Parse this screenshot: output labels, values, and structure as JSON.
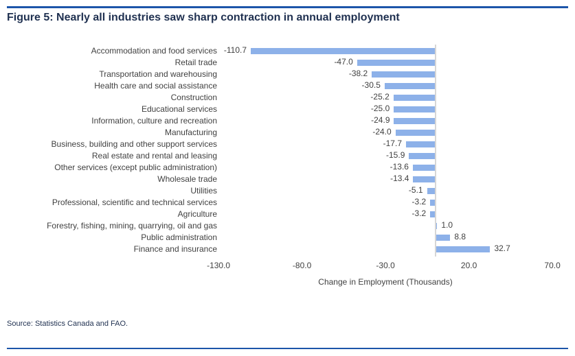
{
  "figure": {
    "title": "Figure 5: Nearly all industries saw sharp contraction in annual employment",
    "source": "Source: Statistics Canada and FAO."
  },
  "chart_data": {
    "type": "bar",
    "orientation": "horizontal",
    "title": "Figure 5: Nearly all industries saw sharp contraction in annual employment",
    "categories": [
      "Accommodation and food services",
      "Retail trade",
      "Transportation and warehousing",
      "Health care and social assistance",
      "Construction",
      "Educational services",
      "Information, culture and recreation",
      "Manufacturing",
      "Business, building and other support services",
      "Real estate and rental and leasing",
      "Other services (except public administration)",
      "Wholesale trade",
      "Utilities",
      "Professional, scientific and technical services",
      "Agriculture",
      "Forestry, fishing, mining, quarrying, oil and gas",
      "Public administration",
      "Finance and insurance"
    ],
    "values": [
      -110.7,
      -47.0,
      -38.2,
      -30.5,
      -25.2,
      -25.0,
      -24.9,
      -24.0,
      -17.7,
      -15.9,
      -13.6,
      -13.4,
      -5.1,
      -3.2,
      -3.2,
      1.0,
      8.8,
      32.7
    ],
    "xlabel": "Change in Employment (Thousands)",
    "xticks": [
      -130.0,
      -80.0,
      -30.0,
      20.0,
      70.0
    ],
    "xlim": [
      -155,
      85
    ],
    "grid": false,
    "legend": false,
    "data_labels": "outside_end_one_decimal",
    "colors": {
      "bar": "#8DB1E9",
      "axis_line": "#D6D6D6",
      "chart_text": "#404040",
      "title_text": "#1F3050",
      "divider_blue": "#1C55A9"
    }
  }
}
